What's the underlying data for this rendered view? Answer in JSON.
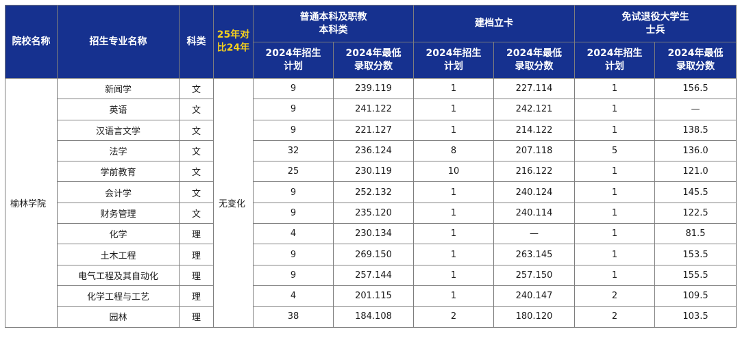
{
  "header": {
    "school_col": "院校名称",
    "major_col": "招生专业名称",
    "category_col": "科类",
    "compare_col_line1": "25年对",
    "compare_col_line2": "比24年",
    "groups": [
      {
        "line1": "普通本科及职教",
        "line2": "本科类"
      },
      {
        "line1": "建档立卡",
        "line2": ""
      },
      {
        "line1": "免试退役大学生",
        "line2": "士兵"
      }
    ],
    "plan_line1": "2024年招生",
    "plan_line2": "计划",
    "score_line1": "2024年最低",
    "score_line2": "录取分数"
  },
  "school": "榆林学院",
  "comparison": "无变化",
  "rows": [
    {
      "major": "新闻学",
      "category": "文",
      "plan1": "9",
      "score1": "239.119",
      "plan2": "1",
      "score2": "227.114",
      "plan3": "1",
      "score3": "156.5"
    },
    {
      "major": "英语",
      "category": "文",
      "plan1": "9",
      "score1": "241.122",
      "plan2": "1",
      "score2": "242.121",
      "plan3": "1",
      "score3": "—"
    },
    {
      "major": "汉语言文学",
      "category": "文",
      "plan1": "9",
      "score1": "221.127",
      "plan2": "1",
      "score2": "214.122",
      "plan3": "1",
      "score3": "138.5"
    },
    {
      "major": "法学",
      "category": "文",
      "plan1": "32",
      "score1": "236.124",
      "plan2": "8",
      "score2": "207.118",
      "plan3": "5",
      "score3": "136.0"
    },
    {
      "major": "学前教育",
      "category": "文",
      "plan1": "25",
      "score1": "230.119",
      "plan2": "10",
      "score2": "216.122",
      "plan3": "1",
      "score3": "121.0"
    },
    {
      "major": "会计学",
      "category": "文",
      "plan1": "9",
      "score1": "252.132",
      "plan2": "1",
      "score2": "240.124",
      "plan3": "1",
      "score3": "145.5"
    },
    {
      "major": "财务管理",
      "category": "文",
      "plan1": "9",
      "score1": "235.120",
      "plan2": "1",
      "score2": "240.114",
      "plan3": "1",
      "score3": "122.5"
    },
    {
      "major": "化学",
      "category": "理",
      "plan1": "4",
      "score1": "230.134",
      "plan2": "1",
      "score2": "—",
      "plan3": "1",
      "score3": "81.5"
    },
    {
      "major": "土木工程",
      "category": "理",
      "plan1": "9",
      "score1": "269.150",
      "plan2": "1",
      "score2": "263.145",
      "plan3": "1",
      "score3": "153.5"
    },
    {
      "major": "电气工程及其自动化",
      "category": "理",
      "plan1": "9",
      "score1": "257.144",
      "plan2": "1",
      "score2": "257.150",
      "plan3": "1",
      "score3": "155.5"
    },
    {
      "major": "化学工程与工艺",
      "category": "理",
      "plan1": "4",
      "score1": "201.115",
      "plan2": "1",
      "score2": "240.147",
      "plan3": "2",
      "score3": "109.5"
    },
    {
      "major": "园林",
      "category": "理",
      "plan1": "38",
      "score1": "184.108",
      "plan2": "2",
      "score2": "180.120",
      "plan3": "2",
      "score3": "103.5"
    }
  ]
}
